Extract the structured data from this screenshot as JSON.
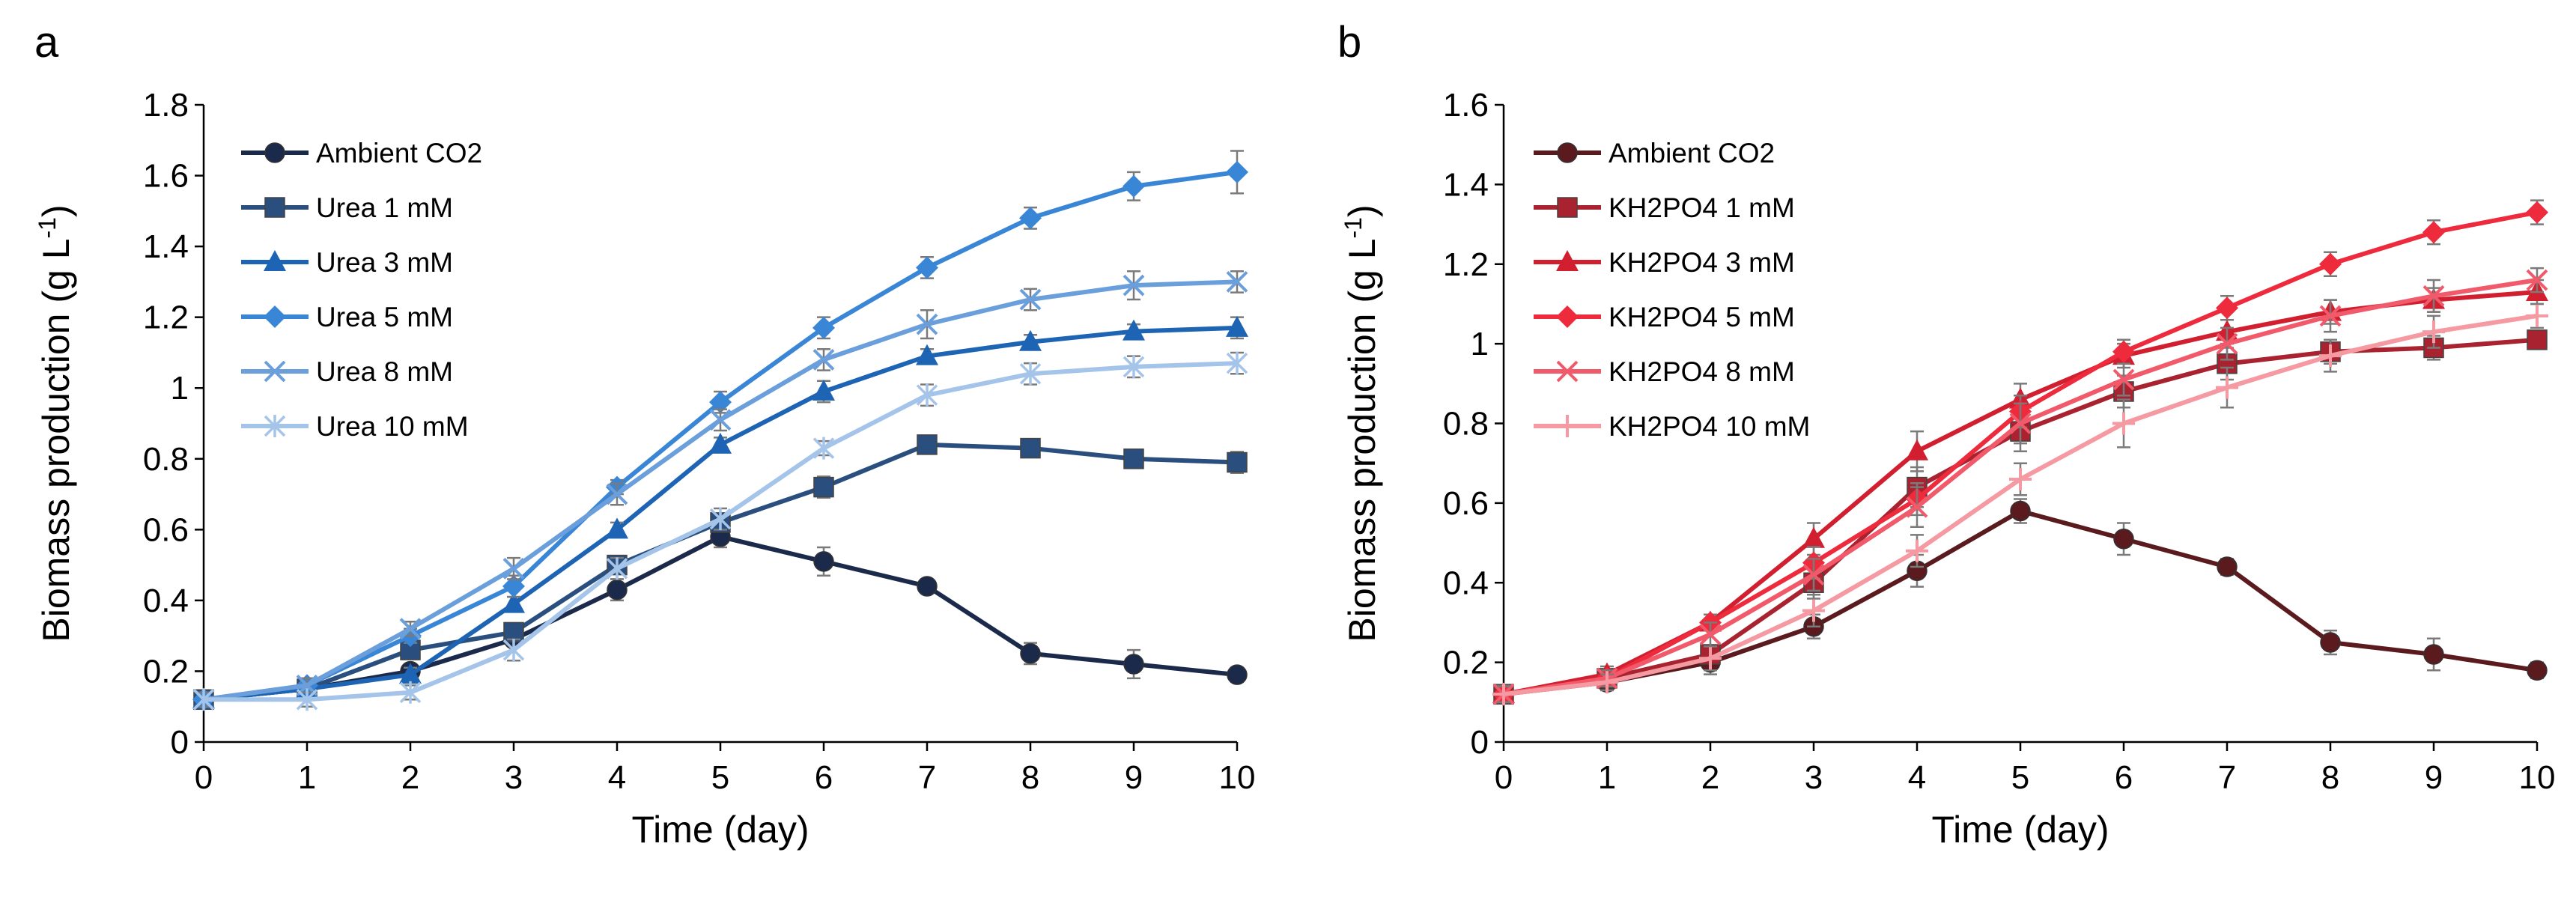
{
  "chart_data": [
    {
      "panel": "a",
      "type": "line",
      "xlabel": "Time (day)",
      "ylabel": "Biomass production (g L",
      "ylabel_sup": "-1",
      "ylabel_close": ")",
      "xlim": [
        0,
        10
      ],
      "ylim": [
        0,
        1.8
      ],
      "xticks": [
        0,
        1,
        2,
        3,
        4,
        5,
        6,
        7,
        8,
        9,
        10
      ],
      "yticks": [
        0,
        0.2,
        0.4,
        0.6,
        0.8,
        1,
        1.2,
        1.4,
        1.6,
        1.8
      ],
      "ytick_labels": [
        "0",
        "0.2",
        "0.4",
        "0.6",
        "0.8",
        "1",
        "1.2",
        "1.4",
        "1.6",
        "1.8"
      ],
      "legend_position": "top-left",
      "series": [
        {
          "name": "Ambient CO2",
          "color": "#1b2a4a",
          "marker": "circle",
          "values": [
            0.12,
            0.15,
            0.2,
            0.29,
            0.43,
            0.58,
            0.51,
            0.44,
            0.25,
            0.22,
            0.19
          ],
          "errors": [
            0.02,
            0.02,
            0.02,
            0.02,
            0.03,
            0.03,
            0.04,
            0.02,
            0.03,
            0.04,
            0.02
          ]
        },
        {
          "name": "Urea 1 mM",
          "color": "#2a4f7e",
          "marker": "square",
          "values": [
            0.12,
            0.15,
            0.26,
            0.31,
            0.5,
            0.62,
            0.72,
            0.84,
            0.83,
            0.8,
            0.79
          ],
          "errors": [
            0.02,
            0.02,
            0.02,
            0.02,
            0.02,
            0.02,
            0.03,
            0.02,
            0.02,
            0.02,
            0.03
          ]
        },
        {
          "name": "Urea 3 mM",
          "color": "#1e64b4",
          "marker": "triangle",
          "values": [
            0.12,
            0.15,
            0.19,
            0.39,
            0.6,
            0.84,
            0.99,
            1.09,
            1.13,
            1.16,
            1.17
          ],
          "errors": [
            0.02,
            0.02,
            0.02,
            0.02,
            0.02,
            0.02,
            0.03,
            0.02,
            0.02,
            0.02,
            0.03
          ]
        },
        {
          "name": "Urea 5 mM",
          "color": "#3a86d6",
          "marker": "diamond",
          "values": [
            0.12,
            0.16,
            0.3,
            0.44,
            0.72,
            0.96,
            1.17,
            1.34,
            1.48,
            1.57,
            1.61
          ],
          "errors": [
            0.02,
            0.02,
            0.02,
            0.03,
            0.02,
            0.03,
            0.03,
            0.03,
            0.03,
            0.04,
            0.06
          ]
        },
        {
          "name": "Urea 8 mM",
          "color": "#6a9fdc",
          "marker": "x",
          "values": [
            0.12,
            0.16,
            0.32,
            0.49,
            0.7,
            0.91,
            1.08,
            1.18,
            1.25,
            1.29,
            1.3
          ],
          "errors": [
            0.02,
            0.02,
            0.02,
            0.03,
            0.03,
            0.03,
            0.03,
            0.04,
            0.03,
            0.04,
            0.03
          ]
        },
        {
          "name": "Urea 10 mM",
          "color": "#a5c4ea",
          "marker": "star",
          "values": [
            0.12,
            0.12,
            0.14,
            0.26,
            0.49,
            0.63,
            0.83,
            0.98,
            1.04,
            1.06,
            1.07
          ],
          "errors": [
            0.02,
            0.02,
            0.02,
            0.03,
            0.03,
            0.03,
            0.02,
            0.03,
            0.03,
            0.03,
            0.03
          ]
        }
      ]
    },
    {
      "panel": "b",
      "type": "line",
      "xlabel": "Time (day)",
      "ylabel": "Biomass production (g L",
      "ylabel_sup": "-1",
      "ylabel_close": ")",
      "xlim": [
        0,
        10
      ],
      "ylim": [
        0,
        1.6
      ],
      "xticks": [
        0,
        1,
        2,
        3,
        4,
        5,
        6,
        7,
        8,
        9,
        10
      ],
      "yticks": [
        0,
        0.2,
        0.4,
        0.6,
        0.8,
        1,
        1.2,
        1.4,
        1.6
      ],
      "ytick_labels": [
        "0",
        "0.2",
        "0.4",
        "0.6",
        "0.8",
        "1",
        "1.2",
        "1.4",
        "1.6"
      ],
      "legend_position": "top-left",
      "series": [
        {
          "name": "Ambient CO2",
          "color": "#5a1a1e",
          "marker": "circle",
          "values": [
            0.12,
            0.15,
            0.2,
            0.29,
            0.43,
            0.58,
            0.51,
            0.44,
            0.25,
            0.22,
            0.18
          ],
          "errors": [
            0.02,
            0.02,
            0.03,
            0.03,
            0.04,
            0.03,
            0.04,
            0.02,
            0.03,
            0.04,
            0.02
          ]
        },
        {
          "name": "KH2PO4 1 mM",
          "color": "#a8232f",
          "marker": "square",
          "values": [
            0.12,
            0.16,
            0.22,
            0.4,
            0.64,
            0.78,
            0.88,
            0.95,
            0.98,
            0.99,
            1.01
          ],
          "errors": [
            0.02,
            0.02,
            0.02,
            0.04,
            0.05,
            0.05,
            0.04,
            0.04,
            0.03,
            0.03,
            0.02
          ]
        },
        {
          "name": "KH2PO4 3 mM",
          "color": "#d11f30",
          "marker": "triangle",
          "values": [
            0.12,
            0.17,
            0.3,
            0.51,
            0.73,
            0.86,
            0.97,
            1.03,
            1.08,
            1.11,
            1.13
          ],
          "errors": [
            0.02,
            0.02,
            0.02,
            0.04,
            0.05,
            0.04,
            0.03,
            0.03,
            0.03,
            0.03,
            0.03
          ]
        },
        {
          "name": "KH2PO4 5 mM",
          "color": "#ee2a3d",
          "marker": "diamond",
          "values": [
            0.12,
            0.16,
            0.3,
            0.45,
            0.61,
            0.83,
            0.98,
            1.09,
            1.2,
            1.28,
            1.33
          ],
          "errors": [
            0.02,
            0.02,
            0.02,
            0.04,
            0.04,
            0.04,
            0.03,
            0.03,
            0.03,
            0.03,
            0.03
          ]
        },
        {
          "name": "KH2PO4 8 mM",
          "color": "#f05a6a",
          "marker": "x",
          "values": [
            0.12,
            0.16,
            0.27,
            0.42,
            0.59,
            0.8,
            0.91,
            1.0,
            1.07,
            1.12,
            1.16
          ],
          "errors": [
            0.02,
            0.02,
            0.03,
            0.04,
            0.05,
            0.05,
            0.04,
            0.04,
            0.04,
            0.04,
            0.03
          ]
        },
        {
          "name": "KH2PO4 10 mM",
          "color": "#f59aa2",
          "marker": "plus",
          "values": [
            0.12,
            0.15,
            0.21,
            0.33,
            0.48,
            0.66,
            0.8,
            0.89,
            0.97,
            1.03,
            1.07
          ],
          "errors": [
            0.02,
            0.02,
            0.03,
            0.04,
            0.04,
            0.04,
            0.06,
            0.05,
            0.04,
            0.04,
            0.03
          ]
        }
      ]
    }
  ]
}
